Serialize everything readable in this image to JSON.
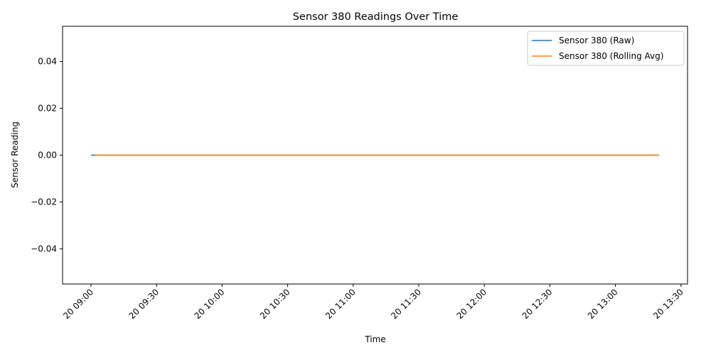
{
  "chart_data": {
    "type": "line",
    "title": "Sensor 380 Readings Over Time",
    "xlabel": "Time",
    "ylabel": "Sensor Reading",
    "xlim": [
      "20 08:47",
      "20 13:33"
    ],
    "ylim": [
      -0.055,
      0.055
    ],
    "x_ticks": [
      {
        "value": "20 09:00",
        "label": "20 09:00"
      },
      {
        "value": "20 09:30",
        "label": "20 09:30"
      },
      {
        "value": "20 10:00",
        "label": "20 10:00"
      },
      {
        "value": "20 10:30",
        "label": "20 10:30"
      },
      {
        "value": "20 11:00",
        "label": "20 11:00"
      },
      {
        "value": "20 11:30",
        "label": "20 11:30"
      },
      {
        "value": "20 12:00",
        "label": "20 12:00"
      },
      {
        "value": "20 12:30",
        "label": "20 12:30"
      },
      {
        "value": "20 13:00",
        "label": "20 13:00"
      },
      {
        "value": "20 13:30",
        "label": "20 13:30"
      }
    ],
    "y_ticks": [
      {
        "value": 0.04,
        "label": "0.04"
      },
      {
        "value": 0.02,
        "label": "0.02"
      },
      {
        "value": 0.0,
        "label": "0.00"
      },
      {
        "value": -0.02,
        "label": "−0.02"
      },
      {
        "value": -0.04,
        "label": "−0.04"
      }
    ],
    "series": [
      {
        "name": "Sensor 380 (Raw)",
        "color": "#1f77b4",
        "x": [
          "20 09:00",
          "20 13:20"
        ],
        "y": [
          0,
          0
        ]
      },
      {
        "name": "Sensor 380 (Rolling Avg)",
        "color": "#ff7f0e",
        "x": [
          "20 09:02",
          "20 13:20"
        ],
        "y": [
          0,
          0
        ]
      }
    ],
    "grid": false,
    "legend_position": "top-right"
  }
}
